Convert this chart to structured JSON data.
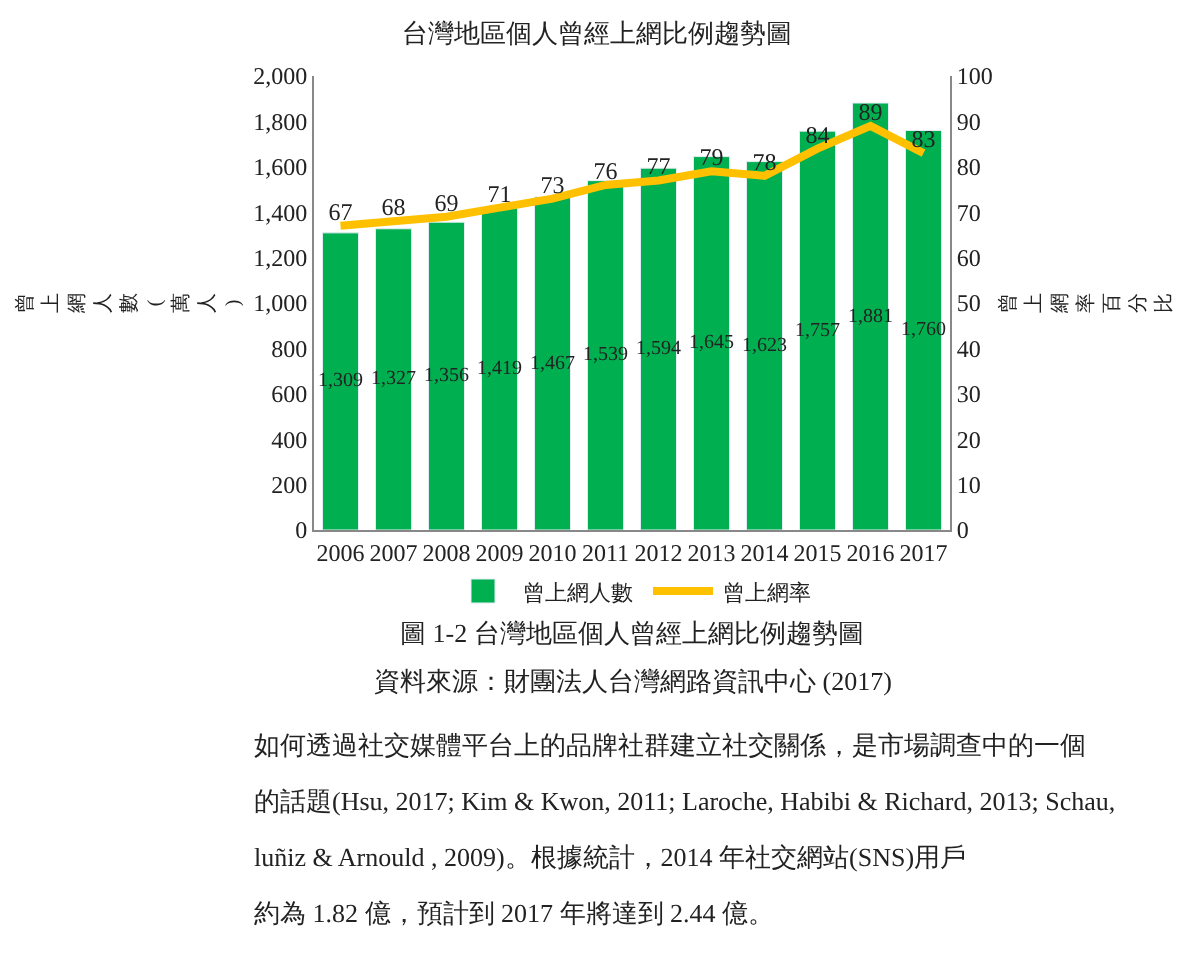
{
  "chart_data": {
    "type": "bar",
    "title": "台灣地區個人曾經上網比例趨勢圖",
    "categories": [
      "2006",
      "2007",
      "2008",
      "2009",
      "2010",
      "2011",
      "2012",
      "2013",
      "2014",
      "2015",
      "2016",
      "2017"
    ],
    "series": [
      {
        "name": "曾上網人數",
        "color": "#00b050",
        "values": [
          1309,
          1327,
          1356,
          1419,
          1467,
          1539,
          1594,
          1645,
          1623,
          1757,
          1881,
          1760
        ],
        "value_labels": [
          "1,309",
          "1,327",
          "1,356",
          "1,419",
          "1,467",
          "1,539",
          "1,594",
          "1,645",
          "1,623",
          "1,757",
          "1,881",
          "1,760"
        ]
      },
      {
        "name": "曾上網率",
        "type": "line",
        "axis": "y2",
        "color": "#ffc000",
        "values": [
          67,
          68,
          69,
          71,
          73,
          76,
          77,
          79,
          78,
          84,
          89,
          83
        ]
      }
    ],
    "data_labels": true,
    "ylabel": "曾上網人數(萬人)",
    "y2label": "曾上網率百分比",
    "ylim": [
      0,
      2000
    ],
    "yticks": [
      0,
      {
        "value": 200,
        "label": "200"
      },
      {
        "value": 400,
        "label": "400"
      },
      {
        "value": 600,
        "label": "600"
      },
      {
        "value": 800,
        "label": "800"
      },
      {
        "value": 1000,
        "label": "1,000"
      },
      {
        "value": 1200,
        "label": "1,200"
      },
      {
        "value": 1400,
        "label": "1,400"
      },
      {
        "value": 1600,
        "label": "1,600"
      },
      {
        "value": 1800,
        "label": "1,800"
      },
      {
        "value": 2000,
        "label": "2,000"
      }
    ],
    "y2lim": [
      0,
      100
    ],
    "y2ticks": [
      0,
      10,
      20,
      30,
      40,
      50,
      60,
      70,
      80,
      90,
      100
    ],
    "grid": false,
    "legend": "bottom",
    "marker": "none",
    "line_style": "solid",
    "annotations": [
      "圖 1-2 台灣地區個人曾經上網比例趨勢圖",
      "資料來源：財團法人台灣網路資訊中心 (2017)",
      "如何透過社交媒體平台上的品牌社群建立社交關係，是市場調查中的一個",
      "的話題(Hsu, 2017; Kim & Kwon, 2011; Laroche, Habibi & Richard, 2013; Schau,",
      "luñiz & Arnould , 2009)。根據統計，2014 年社交網站(SNS)用戶",
      "約為 1.82 億，預計到 2017 年將達到 2.44 億。"
    ]
  }
}
